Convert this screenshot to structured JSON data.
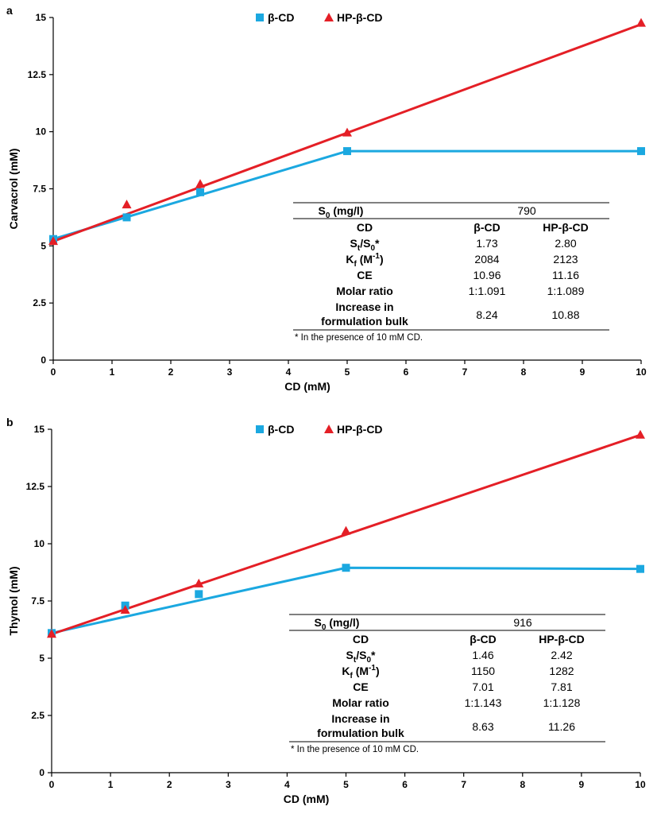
{
  "panels": [
    {
      "panel_label": "a",
      "chart_data": {
        "type": "line",
        "xlabel": "CD (mM)",
        "ylabel": "Carvacrol (mM)",
        "xlim": [
          0,
          10
        ],
        "ylim": [
          0,
          15
        ],
        "x_ticks": [
          0,
          1,
          2,
          3,
          4,
          5,
          6,
          7,
          8,
          9,
          10
        ],
        "y_ticks": [
          0,
          2.5,
          5,
          7.5,
          10,
          12.5,
          15
        ],
        "y_tick_labels": [
          "0",
          "2.5",
          "5",
          "7.5",
          "10",
          "12.5",
          "15"
        ],
        "legend_position": "top-center",
        "series": [
          {
            "name": "β-CD",
            "marker": "square",
            "color": "#1BA8E0",
            "x": [
              0,
              1.25,
              2.5,
              5,
              10
            ],
            "values": [
              5.3,
              6.25,
              7.35,
              9.15,
              9.15
            ],
            "fit_line": [
              [
                0,
                5.3
              ],
              [
                5,
                9.15
              ],
              [
                10,
                9.15
              ]
            ]
          },
          {
            "name": "HP-β-CD",
            "marker": "triangle",
            "color": "#E41F26",
            "x": [
              0,
              1.25,
              2.5,
              5,
              10
            ],
            "values": [
              5.2,
              6.8,
              7.7,
              9.95,
              14.75
            ],
            "fit_line": [
              [
                0,
                5.2
              ],
              [
                10,
                14.7
              ]
            ]
          }
        ]
      },
      "table": {
        "s0_label": "S",
        "s0_sub": "0",
        "s0_unit": " (mg/l)",
        "s0_value": "790",
        "header": {
          "label": "CD",
          "col1": "β-CD",
          "col2": "HP-β-CD"
        },
        "rows": [
          {
            "label_main": "S",
            "label_sub": "t",
            "label_mid": "/S",
            "label_sub2": "0",
            "label_end": "*",
            "v1": "1.73",
            "v2": "2.80"
          },
          {
            "label_main": "K",
            "label_sub": "f",
            "label_mid": " (M",
            "label_sup": "-1",
            "label_end": ")",
            "v1": "2084",
            "v2": "2123"
          },
          {
            "label_main": "CE",
            "v1": "10.96",
            "v2": "11.16"
          },
          {
            "label_main": "Molar ratio",
            "v1": "1:1.091",
            "v2": "1:1.089"
          }
        ],
        "increase_label_line1": "Increase in",
        "increase_label_line2": "formulation bulk",
        "increase_v1": "8.24",
        "increase_v2": "10.88",
        "footnote": "* In the presence of 10 mM CD."
      }
    },
    {
      "panel_label": "b",
      "chart_data": {
        "type": "line",
        "xlabel": "CD (mM)",
        "ylabel": "Thymol (mM)",
        "xlim": [
          0,
          10
        ],
        "ylim": [
          0,
          15
        ],
        "x_ticks": [
          0,
          1,
          2,
          3,
          4,
          5,
          6,
          7,
          8,
          9,
          10
        ],
        "y_ticks": [
          0,
          2.5,
          5,
          7.5,
          10,
          12.5,
          15
        ],
        "y_tick_labels": [
          "0",
          "2.5",
          "5",
          "7.5",
          "10",
          "12.5",
          "15"
        ],
        "legend_position": "top-center",
        "series": [
          {
            "name": "β-CD",
            "marker": "square",
            "color": "#1BA8E0",
            "x": [
              0,
              1.25,
              2.5,
              5,
              10
            ],
            "values": [
              6.1,
              7.3,
              7.8,
              8.95,
              8.9
            ],
            "fit_line": [
              [
                0,
                6.1
              ],
              [
                5,
                8.95
              ],
              [
                10,
                8.9
              ]
            ]
          },
          {
            "name": "HP-β-CD",
            "marker": "triangle",
            "color": "#E41F26",
            "x": [
              0,
              1.25,
              2.5,
              5,
              10
            ],
            "values": [
              6.05,
              7.1,
              8.25,
              10.55,
              14.75
            ],
            "fit_line": [
              [
                0,
                6.05
              ],
              [
                10,
                14.75
              ]
            ]
          }
        ]
      },
      "table": {
        "s0_label": "S",
        "s0_sub": "0",
        "s0_unit": " (mg/l)",
        "s0_value": "916",
        "header": {
          "label": "CD",
          "col1": "β-CD",
          "col2": "HP-β-CD"
        },
        "rows": [
          {
            "label_main": "S",
            "label_sub": "t",
            "label_mid": "/S",
            "label_sub2": "0",
            "label_end": "*",
            "v1": "1.46",
            "v2": "2.42"
          },
          {
            "label_main": "K",
            "label_sub": "f",
            "label_mid": " (M",
            "label_sup": "-1",
            "label_end": ")",
            "v1": "1150",
            "v2": "1282"
          },
          {
            "label_main": "CE",
            "v1": "7.01",
            "v2": "7.81"
          },
          {
            "label_main": "Molar ratio",
            "v1": "1:1.143",
            "v2": "1:1.128"
          }
        ],
        "increase_label_line1": "Increase in",
        "increase_label_line2": "formulation bulk",
        "increase_v1": "8.63",
        "increase_v2": "11.26",
        "footnote": "* In the presence of 10 mM CD."
      }
    }
  ]
}
